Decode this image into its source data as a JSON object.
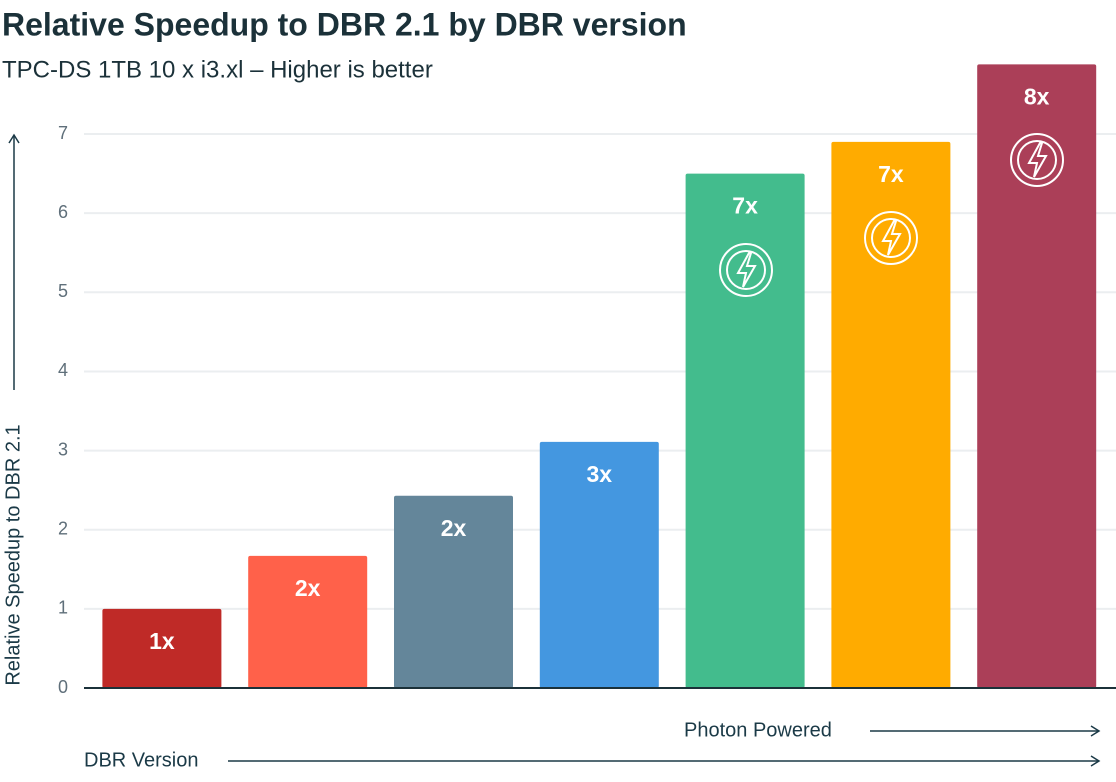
{
  "chart_data": {
    "type": "bar",
    "title": "Relative Speedup to DBR 2.1 by DBR version",
    "subtitle": "TPC-DS 1TB 10 x i3.xl – Higher is better",
    "y_label": "Relative Speedup to DBR 2.1",
    "x_label": "DBR Version",
    "annotation": "Photon Powered",
    "categories": [
      null,
      null,
      null,
      null,
      null,
      null,
      null
    ],
    "values": [
      1.0,
      1.67,
      2.43,
      3.11,
      6.5,
      6.9,
      7.88
    ],
    "value_labels": [
      "1x",
      "2x",
      "2x",
      "3x",
      "7x",
      "7x",
      "8x"
    ],
    "colors": [
      "#bf2a27",
      "#ff614a",
      "#64869a",
      "#4497e0",
      "#43bc8d",
      "#ffab00",
      "#ab3f58"
    ],
    "ylim": [
      0,
      8
    ],
    "yticks": [
      0,
      1,
      2,
      3,
      4,
      5,
      6,
      7
    ],
    "grid": true
  }
}
